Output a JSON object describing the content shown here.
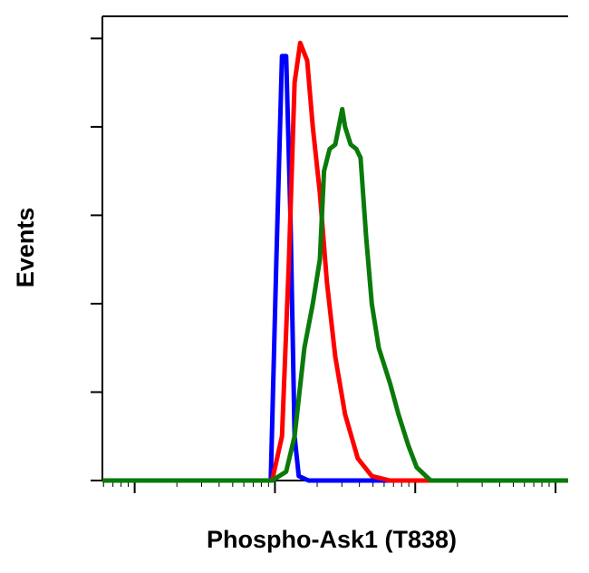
{
  "chart_data": {
    "type": "line",
    "x_label": "Phospho-Ask1 (T838)",
    "y_label": "Events",
    "xlog": true,
    "xlim": [
      0.77,
      4.09
    ],
    "xticks": [
      1,
      2,
      3,
      4
    ],
    "ylim": [
      0,
      105
    ],
    "yticks": [
      0,
      20,
      40,
      60,
      80,
      100
    ],
    "series": [
      {
        "color": "#0000ff",
        "x": [
          0.77,
          1.97,
          2.01,
          2.05,
          2.08,
          2.11,
          2.14,
          2.17,
          2.24,
          4.09
        ],
        "values": [
          0,
          0,
          50,
          96,
          96,
          60,
          10,
          1,
          0,
          0
        ]
      },
      {
        "color": "#ff0000",
        "x": [
          0.77,
          1.98,
          2.05,
          2.1,
          2.14,
          2.18,
          2.23,
          2.27,
          2.32,
          2.37,
          2.43,
          2.5,
          2.59,
          2.69,
          2.82,
          4.09
        ],
        "values": [
          0,
          0,
          10,
          50,
          90,
          99,
          95,
          80,
          65,
          45,
          28,
          15,
          5,
          1,
          0,
          0
        ]
      },
      {
        "color": "#0a7a0a",
        "x": [
          0.77,
          1.98,
          2.08,
          2.14,
          2.21,
          2.27,
          2.32,
          2.35,
          2.39,
          2.43,
          2.48,
          2.5,
          2.54,
          2.58,
          2.61,
          2.65,
          2.69,
          2.74,
          2.82,
          2.88,
          2.95,
          3.01,
          3.11,
          4.09
        ],
        "values": [
          0,
          0,
          2,
          10,
          30,
          40,
          50,
          70,
          75,
          76,
          84,
          80,
          76,
          75,
          73,
          55,
          40,
          30,
          22,
          15,
          8,
          3,
          0,
          0
        ]
      }
    ]
  }
}
